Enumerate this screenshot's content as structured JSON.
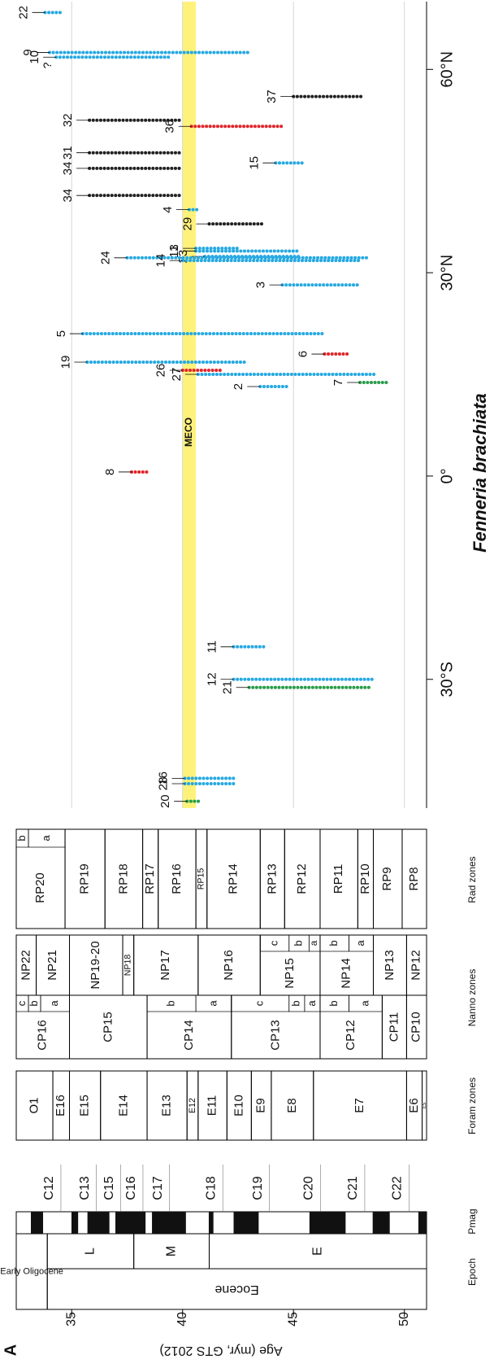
{
  "chart_data": {
    "type": "range",
    "panel_label": "A",
    "title": "Fenneria brachiata",
    "ylabel": "Age (myr, GTS 2012)",
    "ylim": [
      32.5,
      51
    ],
    "yticks": [
      35,
      40,
      45,
      50
    ],
    "xlim": [
      -49,
      70
    ],
    "xticks": [
      {
        "value": -30,
        "label": "30°S"
      },
      {
        "value": 0,
        "label": "0°"
      },
      {
        "value": 30,
        "label": "30°N"
      },
      {
        "value": 60,
        "label": "60°N"
      }
    ],
    "grid": true,
    "column_headers": {
      "epoch": "Epoch",
      "pmag": "Pmag",
      "foram": "Foram zones",
      "nanno": "Nanno zones",
      "rad": "Rad zones"
    },
    "band": {
      "label": "MECO",
      "top": 40.0,
      "base": 40.6,
      "color": "#fff27a"
    },
    "epochs": [
      {
        "name": "Early Oligocene",
        "top": 32.5,
        "base": 33.9
      },
      {
        "name": "Eocene",
        "top": 33.9,
        "base": 51
      }
    ],
    "subepochs": [
      {
        "name": "L",
        "top": 33.9,
        "base": 37.8
      },
      {
        "name": "M",
        "top": 37.8,
        "base": 41.2
      },
      {
        "name": "E",
        "top": 41.2,
        "base": 51
      }
    ],
    "normal_chrons": [
      [
        33.16,
        33.71
      ],
      [
        34.99,
        35.29
      ],
      [
        35.71,
        36.7
      ],
      [
        36.97,
        38.33
      ],
      [
        38.62,
        40.15
      ],
      [
        41.18,
        41.39
      ],
      [
        42.3,
        43.43
      ],
      [
        45.72,
        47.35
      ],
      [
        48.57,
        49.34
      ],
      [
        50.63,
        51.0
      ]
    ],
    "chron_labels": [
      {
        "label": "C12",
        "age": 34.0
      },
      {
        "label": "C13",
        "age": 35.6
      },
      {
        "label": "C15",
        "age": 36.7
      },
      {
        "label": "C16",
        "age": 37.7
      },
      {
        "label": "C17",
        "age": 38.9
      },
      {
        "label": "C18",
        "age": 41.3
      },
      {
        "label": "C19",
        "age": 43.4
      },
      {
        "label": "C20",
        "age": 45.7
      },
      {
        "label": "C21",
        "age": 47.7
      },
      {
        "label": "C22",
        "age": 49.7
      }
    ],
    "foram_zones": [
      {
        "name": "O1",
        "top": 32.5,
        "base": 34.15
      },
      {
        "name": "E16",
        "top": 34.15,
        "base": 34.9
      },
      {
        "name": "E15",
        "top": 34.9,
        "base": 36.3
      },
      {
        "name": "E14",
        "top": 36.3,
        "base": 38.4
      },
      {
        "name": "E13",
        "top": 38.4,
        "base": 40.2
      },
      {
        "name": "E12",
        "top": 40.2,
        "base": 40.7
      },
      {
        "name": "E11",
        "top": 40.7,
        "base": 42.0
      },
      {
        "name": "E10",
        "top": 42.0,
        "base": 43.1
      },
      {
        "name": "E9",
        "top": 43.1,
        "base": 44.0
      },
      {
        "name": "E8",
        "top": 44.0,
        "base": 45.9
      },
      {
        "name": "E7",
        "top": 45.9,
        "base": 50.1
      },
      {
        "name": "E6",
        "top": 50.1,
        "base": 50.8
      },
      {
        "name": "E5",
        "top": 50.8,
        "base": 51.0
      }
    ],
    "cp_zones": [
      {
        "name": "CP16",
        "top": 32.5,
        "base": 34.9,
        "subzones": [
          {
            "name": "c",
            "top": 32.5,
            "base": 33.05
          },
          {
            "name": "b",
            "top": 33.05,
            "base": 33.6
          },
          {
            "name": "a",
            "top": 33.6,
            "base": 34.9
          }
        ]
      },
      {
        "name": "CP15",
        "top": 34.9,
        "base": 38.4
      },
      {
        "name": "CP14",
        "top": 38.4,
        "base": 42.2,
        "subzones": [
          {
            "name": "b",
            "top": 38.4,
            "base": 40.6
          },
          {
            "name": "a",
            "top": 40.6,
            "base": 42.2
          }
        ]
      },
      {
        "name": "CP13",
        "top": 42.2,
        "base": 46.2,
        "subzones": [
          {
            "name": "c",
            "top": 42.2,
            "base": 44.8
          },
          {
            "name": "b",
            "top": 44.8,
            "base": 45.5
          },
          {
            "name": "a",
            "top": 45.5,
            "base": 46.2
          }
        ]
      },
      {
        "name": "CP12",
        "top": 46.2,
        "base": 49.0,
        "subzones": [
          {
            "name": "b",
            "top": 46.2,
            "base": 47.5
          },
          {
            "name": "a",
            "top": 47.5,
            "base": 49.0
          }
        ]
      },
      {
        "name": "CP11",
        "top": 49.0,
        "base": 50.1
      },
      {
        "name": "CP10",
        "top": 50.1,
        "base": 51.0
      }
    ],
    "np_zones": [
      {
        "name": "NP22",
        "top": 32.5,
        "base": 33.4
      },
      {
        "name": "NP21",
        "top": 33.4,
        "base": 34.9
      },
      {
        "name": "NP19-20",
        "top": 34.9,
        "base": 37.3
      },
      {
        "name": "NP18",
        "top": 37.3,
        "base": 37.8
      },
      {
        "name": "NP17",
        "top": 37.8,
        "base": 40.7
      },
      {
        "name": "NP16",
        "top": 40.7,
        "base": 43.5
      },
      {
        "name": "NP15",
        "top": 43.5,
        "base": 46.2,
        "subzones": [
          {
            "name": "c",
            "top": 43.5,
            "base": 44.8
          },
          {
            "name": "b",
            "top": 44.8,
            "base": 45.7
          },
          {
            "name": "a",
            "top": 45.7,
            "base": 46.2
          }
        ]
      },
      {
        "name": "NP14",
        "top": 46.2,
        "base": 48.6,
        "subzones": [
          {
            "name": "b",
            "top": 46.2,
            "base": 47.5
          },
          {
            "name": "a",
            "top": 47.5,
            "base": 48.6
          }
        ]
      },
      {
        "name": "NP13",
        "top": 48.6,
        "base": 50.1
      },
      {
        "name": "NP12",
        "top": 50.1,
        "base": 51.0
      }
    ],
    "rad_zones": [
      {
        "name": "RP20",
        "top": 32.5,
        "base": 34.7,
        "subzones": [
          {
            "name": "b",
            "top": 32.5,
            "base": 33.05
          },
          {
            "name": "a",
            "top": 33.05,
            "base": 34.7
          }
        ]
      },
      {
        "name": "RP19",
        "top": 34.7,
        "base": 36.5
      },
      {
        "name": "RP18",
        "top": 36.5,
        "base": 38.2
      },
      {
        "name": "RP17",
        "top": 38.2,
        "base": 38.9
      },
      {
        "name": "RP16",
        "top": 38.9,
        "base": 40.6
      },
      {
        "name": "RP15",
        "top": 40.6,
        "base": 41.1
      },
      {
        "name": "RP14",
        "top": 41.1,
        "base": 43.5
      },
      {
        "name": "RP13",
        "top": 43.5,
        "base": 44.6
      },
      {
        "name": "RP12",
        "top": 44.6,
        "base": 46.2
      },
      {
        "name": "RP11",
        "top": 46.2,
        "base": 47.9
      },
      {
        "name": "RP10",
        "top": 47.9,
        "base": 48.6
      },
      {
        "name": "RP9",
        "top": 48.6,
        "base": 49.9
      },
      {
        "name": "RP8",
        "top": 49.9,
        "base": 51.0
      }
    ],
    "sites": [
      {
        "label": "22",
        "lat": 68.4,
        "top": 33.8,
        "base": 34.5,
        "color": "#27a9e1"
      },
      {
        "label": "9",
        "lat": 62.5,
        "top": 34.0,
        "base": 43.0,
        "color": "#27a9e1"
      },
      {
        "label": "10",
        "lat": 61.8,
        "top": 34.3,
        "base": 39.5,
        "color": "#27a9e1",
        "note": "?"
      },
      {
        "label": "32",
        "lat": 52.5,
        "top": 35.8,
        "base": 40.0,
        "color": "#222222"
      },
      {
        "label": "31",
        "lat": 47.7,
        "top": 35.8,
        "base": 40.0,
        "color": "#222222"
      },
      {
        "label": "34",
        "lat": 45.4,
        "top": 35.8,
        "base": 40.0,
        "color": "#222222"
      },
      {
        "label": "34",
        "lat": 41.4,
        "top": 35.8,
        "base": 40.0,
        "color": "#222222"
      },
      {
        "label": "36",
        "lat": 51.6,
        "top": 40.4,
        "base": 44.5,
        "color": "#e0262b"
      },
      {
        "label": "37",
        "lat": 56.0,
        "top": 45.0,
        "base": 48.2,
        "color": "#222222"
      },
      {
        "label": "15",
        "lat": 46.2,
        "top": 44.2,
        "base": 45.5,
        "color": "#27a9e1"
      },
      {
        "label": "4",
        "lat": 39.3,
        "top": 40.3,
        "base": 40.8,
        "color": "#27a9e1"
      },
      {
        "label": "29",
        "lat": 37.2,
        "top": 41.2,
        "base": 43.6,
        "color": "#222222"
      },
      {
        "label": "1",
        "lat": 33.6,
        "top": 40.6,
        "base": 42.5,
        "color": "#27a9e1"
      },
      {
        "label": "13",
        "lat": 33.2,
        "top": 40.6,
        "base": 45.3,
        "color": "#27a9e1"
      },
      {
        "label": "23",
        "lat": 32.4,
        "top": 41.0,
        "base": 45.3,
        "color": "#27a9e1"
      },
      {
        "label": "24",
        "lat": 32.2,
        "top": 37.5,
        "base": 48.3,
        "color": "#27a9e1"
      },
      {
        "label": "14",
        "lat": 31.8,
        "top": 40.0,
        "base": 48.0,
        "color": "#27a9e1"
      },
      {
        "label": "3",
        "lat": 28.2,
        "top": 44.5,
        "base": 48.0,
        "color": "#27a9e1"
      },
      {
        "label": "5",
        "lat": 21.0,
        "top": 35.5,
        "base": 46.4,
        "color": "#27a9e1"
      },
      {
        "label": "19",
        "lat": 16.8,
        "top": 35.7,
        "base": 42.9,
        "color": "#27a9e1"
      },
      {
        "label": "26",
        "lat": 15.6,
        "top": 40.0,
        "base": 41.8,
        "color": "#e0262b"
      },
      {
        "label": "27",
        "lat": 15.0,
        "top": 40.7,
        "base": 48.7,
        "color": "#27a9e1"
      },
      {
        "label": "6",
        "lat": 18.0,
        "top": 46.4,
        "base": 47.5,
        "color": "#e0262b"
      },
      {
        "label": "7",
        "lat": 13.8,
        "top": 48.0,
        "base": 49.2,
        "color": "#2a9d4a"
      },
      {
        "label": "2",
        "lat": 13.2,
        "top": 43.5,
        "base": 44.8,
        "color": "#27a9e1"
      },
      {
        "label": "8",
        "lat": 0.6,
        "top": 37.7,
        "base": 38.5,
        "color": "#e0262b"
      },
      {
        "label": "11",
        "lat": -25.2,
        "top": 42.3,
        "base": 43.7,
        "color": "#27a9e1"
      },
      {
        "label": "12",
        "lat": -30.0,
        "top": 42.3,
        "base": 48.7,
        "color": "#27a9e1"
      },
      {
        "label": "21",
        "lat": -31.2,
        "top": 43.0,
        "base": 48.5,
        "color": "#2a9d4a"
      },
      {
        "label": "16",
        "lat": -44.6,
        "top": 40.1,
        "base": 42.4,
        "color": "#27a9e1"
      },
      {
        "label": "28",
        "lat": -45.4,
        "top": 40.1,
        "base": 42.4,
        "color": "#27a9e1"
      },
      {
        "label": "20",
        "lat": -48.0,
        "top": 40.2,
        "base": 40.8,
        "color": "#2a9d4a"
      }
    ]
  }
}
